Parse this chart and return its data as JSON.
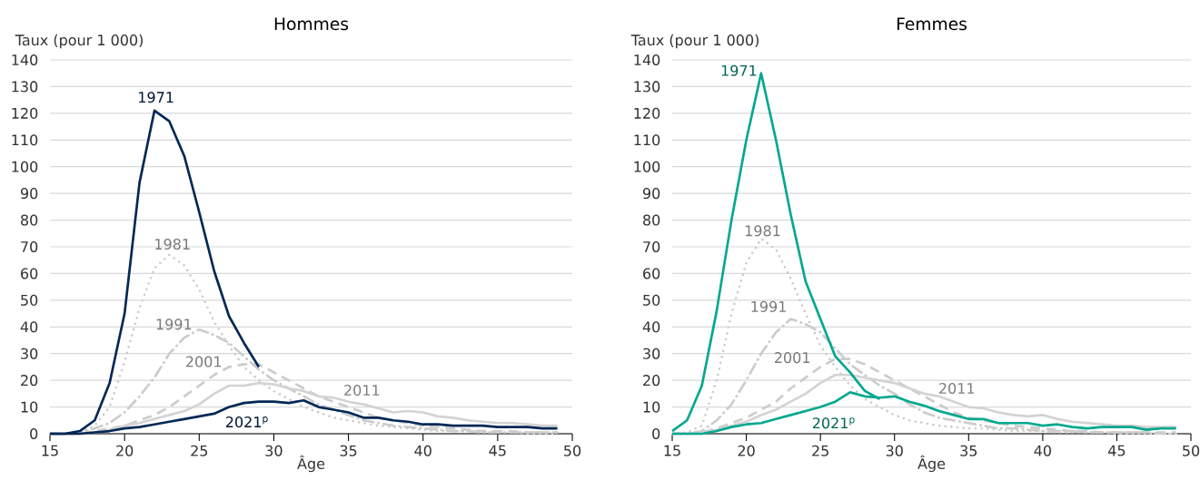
{
  "chart_data": [
    {
      "type": "line",
      "title": "Hommes",
      "xlabel": "Âge",
      "ylabel": "Taux (pour 1 000)",
      "xlim": [
        15,
        50
      ],
      "ylim": [
        0,
        140
      ],
      "xticks": [
        15,
        20,
        25,
        30,
        35,
        40,
        45,
        50
      ],
      "yticks": [
        0,
        10,
        20,
        30,
        40,
        50,
        60,
        70,
        80,
        90,
        100,
        110,
        120,
        130,
        140
      ],
      "grid": "y",
      "x": [
        15,
        16,
        17,
        18,
        19,
        20,
        21,
        22,
        23,
        24,
        25,
        26,
        27,
        28,
        29,
        30,
        31,
        32,
        33,
        34,
        35,
        36,
        37,
        38,
        39,
        40,
        41,
        42,
        43,
        44,
        45,
        46,
        47,
        48,
        49
      ],
      "series": [
        {
          "name": "1981",
          "color": "#cccccc",
          "line_style": "dotted",
          "values": [
            0,
            0,
            0.5,
            3,
            10,
            27,
            47,
            62,
            67,
            63,
            54,
            42,
            33,
            25,
            20,
            16,
            13,
            10,
            8,
            6,
            5,
            4,
            3,
            2.5,
            2,
            1.5,
            1,
            1,
            1,
            0.5,
            0.5,
            0.5,
            0,
            0,
            0
          ]
        },
        {
          "name": "1991",
          "color": "#cccccc",
          "line_style": "dashdot",
          "values": [
            0,
            0,
            0.5,
            2,
            4,
            8,
            14,
            21,
            30,
            36,
            39,
            37,
            34,
            29,
            24,
            20,
            17,
            14,
            11,
            9,
            7,
            5,
            4,
            3,
            2.5,
            2,
            1.5,
            1,
            1,
            0.5,
            0.5,
            0.5,
            0.5,
            0.5,
            0.5
          ]
        },
        {
          "name": "2001",
          "color": "#cccccc",
          "line_style": "dashed",
          "values": [
            0,
            0,
            0,
            1,
            2,
            3,
            5,
            7,
            10,
            14,
            18,
            22,
            25,
            26,
            26,
            23,
            20,
            17,
            14,
            12,
            10,
            8,
            6,
            5,
            4,
            3,
            2.5,
            2,
            1.5,
            1,
            1,
            1,
            0.5,
            0.5,
            0.5
          ]
        },
        {
          "name": "2011",
          "color": "#d3d3d3",
          "line_style": "solid",
          "values": [
            0,
            0,
            0,
            0.5,
            1.5,
            3,
            4,
            5.5,
            7,
            8.5,
            11,
            15,
            18,
            18,
            19,
            18.5,
            17,
            16,
            14,
            13.5,
            12,
            11,
            9.5,
            8,
            8.5,
            8,
            6.5,
            6,
            5,
            4.5,
            4,
            4,
            3.5,
            3,
            3
          ]
        },
        {
          "name": "1971",
          "color": "#002855",
          "line_style": "solid",
          "values": [
            0,
            0,
            1,
            5,
            19,
            45,
            94,
            121,
            117,
            104,
            83,
            61,
            44,
            34,
            25,
            null,
            null,
            null,
            null,
            null,
            null,
            null,
            null,
            null,
            null,
            null,
            null,
            null,
            null,
            null,
            null,
            null,
            null,
            null,
            null
          ]
        },
        {
          "name": "2021$^{p}$",
          "color": "#002855",
          "line_style": "solid",
          "values": [
            0,
            0,
            0,
            0.5,
            1,
            2,
            2.5,
            3.5,
            4.5,
            5.5,
            6.5,
            7.5,
            10,
            11.5,
            12,
            12,
            11.5,
            12.5,
            10,
            9,
            8,
            6,
            6,
            5,
            4.5,
            3.5,
            3.5,
            3,
            3,
            3,
            2.5,
            2.5,
            2.5,
            2,
            2
          ]
        }
      ]
    },
    {
      "type": "line",
      "title": "Femmes",
      "xlabel": "Âge",
      "ylabel": "Taux (pour 1 000)",
      "xlim": [
        15,
        50
      ],
      "ylim": [
        0,
        140
      ],
      "xticks": [
        15,
        20,
        25,
        30,
        35,
        40,
        45,
        50
      ],
      "yticks": [
        0,
        10,
        20,
        30,
        40,
        50,
        60,
        70,
        80,
        90,
        100,
        110,
        120,
        130,
        140
      ],
      "grid": "y",
      "x": [
        15,
        16,
        17,
        18,
        19,
        20,
        21,
        22,
        23,
        24,
        25,
        26,
        27,
        28,
        29,
        30,
        31,
        32,
        33,
        34,
        35,
        36,
        37,
        38,
        39,
        40,
        41,
        42,
        43,
        44,
        45,
        46,
        47,
        48,
        49
      ],
      "series": [
        {
          "name": "1981",
          "color": "#cccccc",
          "line_style": "dotted",
          "values": [
            0,
            0.5,
            3,
            20,
            45,
            64,
            73,
            69,
            58,
            45,
            33,
            25,
            18,
            13,
            10,
            7,
            5,
            4,
            3,
            2.5,
            2,
            2,
            1.5,
            1,
            1,
            1,
            0.5,
            0.5,
            0.5,
            0.5,
            0,
            0,
            0,
            0,
            0
          ]
        },
        {
          "name": "1991",
          "color": "#cccccc",
          "line_style": "dashdot",
          "values": [
            0,
            0,
            1,
            5,
            11,
            20,
            30,
            38,
            43,
            41,
            38,
            32,
            26,
            22,
            18,
            15,
            11,
            8,
            6,
            5,
            4,
            3,
            2,
            2,
            1.5,
            1,
            1,
            1,
            0.5,
            0.5,
            0.5,
            0.5,
            0.5,
            0,
            0
          ]
        },
        {
          "name": "2001",
          "color": "#cccccc",
          "line_style": "dashed",
          "values": [
            0,
            0,
            0.5,
            2,
            4,
            6,
            9,
            12,
            17,
            21,
            25,
            28,
            28,
            26,
            23,
            20,
            17,
            14,
            11,
            8,
            6,
            5,
            4,
            3,
            2.5,
            2,
            1.5,
            1,
            1,
            0.5,
            0.5,
            0.5,
            0.5,
            0.5,
            0.5
          ]
        },
        {
          "name": "2011",
          "color": "#d3d3d3",
          "line_style": "solid",
          "values": [
            0,
            0,
            0,
            1.5,
            3,
            4.5,
            7,
            9,
            12,
            15,
            19,
            22,
            22,
            21,
            20,
            19,
            17,
            15,
            14,
            12,
            10,
            9.5,
            8,
            7,
            6.5,
            7,
            5.5,
            4.5,
            4,
            3.5,
            3,
            3,
            2.5,
            2.5,
            2.5
          ]
        },
        {
          "name": "1971",
          "color": "#00a88f",
          "line_style": "solid",
          "values": [
            1,
            5,
            18,
            46,
            80,
            110,
            135,
            110,
            82,
            57,
            43,
            29,
            23,
            16,
            13,
            null,
            null,
            null,
            null,
            null,
            null,
            null,
            null,
            null,
            null,
            null,
            null,
            null,
            null,
            null,
            null,
            null,
            null,
            null,
            null
          ]
        },
        {
          "name": "2021$^{p}$",
          "color": "#00a88f",
          "line_style": "solid",
          "values": [
            0,
            0,
            0,
            1,
            2.5,
            3.5,
            4,
            5.5,
            7,
            8.5,
            10,
            12,
            15.5,
            14,
            13.5,
            14,
            12,
            10.5,
            8.5,
            7,
            5.5,
            5.5,
            4,
            4,
            4,
            3,
            3.5,
            2.5,
            2,
            2.5,
            2.5,
            2.5,
            1.5,
            2,
            2
          ]
        }
      ]
    }
  ]
}
